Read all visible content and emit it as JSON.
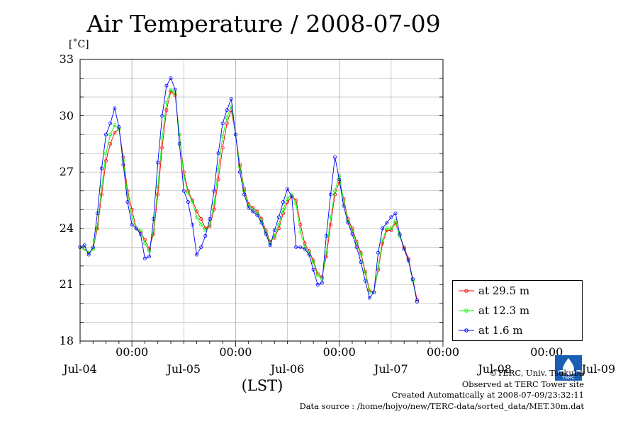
{
  "title": "Air Temperature / 2008-07-09",
  "unit_label": "[˚C]",
  "xlabel": "(LST)",
  "yticks": [
    "33",
    "30",
    "27",
    "24",
    "21",
    "18"
  ],
  "time_ticks": [
    "00:00",
    "00:00",
    "00:00",
    "00:00",
    "00:00"
  ],
  "date_ticks": [
    "Jul-04",
    "Jul-05",
    "Jul-06",
    "Jul-07",
    "Jul-08",
    "Jul-09"
  ],
  "legend": [
    {
      "label": "at 29.5 m",
      "color": "#ff0000"
    },
    {
      "label": "at 12.3 m",
      "color": "#00ff00"
    },
    {
      "label": "at 1.6 m",
      "color": "#0000ff"
    }
  ],
  "credits": {
    "copyright": "©TERC, Univ. Tsukuba",
    "observed": "Observed at TERC Tower site",
    "created": "Created Automatically at 2008-07-09/23:32:11",
    "source": "Data source : /home/hojyo/new/TERC-data/sorted_data/MET.30m.dat",
    "logo_text": "TERC"
  },
  "chart_data": {
    "type": "line",
    "title": "Air Temperature / 2008-07-09",
    "ylabel": "[˚C]",
    "xlabel": "(LST)",
    "ylim": [
      18,
      33
    ],
    "xlim_hours": [
      -12,
      72
    ],
    "grid": true,
    "legend_position": "bottom-right",
    "x_unit": "hours relative to Jul-05 00:00",
    "series": [
      {
        "name": "at 29.5 m",
        "color": "#ff0000",
        "points": [
          [
            -12,
            23.0
          ],
          [
            -11,
            22.9
          ],
          [
            -10,
            22.7
          ],
          [
            -9,
            22.9
          ],
          [
            -8,
            24.0
          ],
          [
            -7,
            25.8
          ],
          [
            -6,
            27.6
          ],
          [
            -5,
            28.5
          ],
          [
            -4,
            29.1
          ],
          [
            -3,
            29.3
          ],
          [
            -2,
            27.8
          ],
          [
            -1,
            26.0
          ],
          [
            0,
            25.0
          ],
          [
            1,
            24.0
          ],
          [
            2,
            23.8
          ],
          [
            3,
            23.4
          ],
          [
            4,
            22.9
          ],
          [
            5,
            23.7
          ],
          [
            6,
            25.8
          ],
          [
            7,
            28.3
          ],
          [
            8,
            30.3
          ],
          [
            9,
            31.3
          ],
          [
            10,
            31.1
          ],
          [
            11,
            29.0
          ],
          [
            12,
            27.0
          ],
          [
            13,
            26.0
          ],
          [
            14,
            25.5
          ],
          [
            15,
            24.9
          ],
          [
            16,
            24.5
          ],
          [
            17,
            24.0
          ],
          [
            18,
            24.1
          ],
          [
            19,
            25.0
          ],
          [
            20,
            26.6
          ],
          [
            21,
            28.3
          ],
          [
            22,
            29.6
          ],
          [
            23,
            30.3
          ],
          [
            24,
            29.0
          ],
          [
            25,
            27.4
          ],
          [
            26,
            26.1
          ],
          [
            27,
            25.3
          ],
          [
            28,
            25.1
          ],
          [
            29,
            24.9
          ],
          [
            30,
            24.5
          ],
          [
            31,
            23.9
          ],
          [
            32,
            23.3
          ],
          [
            33,
            23.5
          ],
          [
            34,
            24.0
          ],
          [
            35,
            24.8
          ],
          [
            36,
            25.4
          ],
          [
            37,
            25.7
          ],
          [
            38,
            25.5
          ],
          [
            39,
            24.2
          ],
          [
            40,
            23.2
          ],
          [
            41,
            22.8
          ],
          [
            42,
            22.3
          ],
          [
            43,
            21.6
          ],
          [
            44,
            21.4
          ],
          [
            45,
            22.5
          ],
          [
            46,
            24.2
          ],
          [
            47,
            25.8
          ],
          [
            48,
            26.5
          ],
          [
            49,
            25.6
          ],
          [
            50,
            24.5
          ],
          [
            51,
            24.0
          ],
          [
            52,
            23.3
          ],
          [
            53,
            22.7
          ],
          [
            54,
            21.7
          ],
          [
            55,
            20.7
          ],
          [
            56,
            20.6
          ],
          [
            57,
            21.8
          ],
          [
            58,
            23.2
          ],
          [
            59,
            23.9
          ],
          [
            60,
            23.9
          ],
          [
            61,
            24.3
          ],
          [
            62,
            23.6
          ],
          [
            63,
            23.0
          ],
          [
            64,
            22.4
          ],
          [
            65,
            21.3
          ],
          [
            66,
            20.2
          ]
        ]
      },
      {
        "name": "at 12.3 m",
        "color": "#00ff00",
        "points": [
          [
            -12,
            23.0
          ],
          [
            -11,
            22.9
          ],
          [
            -10,
            22.7
          ],
          [
            -9,
            22.9
          ],
          [
            -8,
            24.2
          ],
          [
            -7,
            26.2
          ],
          [
            -6,
            28.0
          ],
          [
            -5,
            29.0
          ],
          [
            -4,
            29.5
          ],
          [
            -3,
            29.3
          ],
          [
            -2,
            27.6
          ],
          [
            -1,
            25.8
          ],
          [
            0,
            24.6
          ],
          [
            1,
            24.0
          ],
          [
            2,
            23.9
          ],
          [
            3,
            23.2
          ],
          [
            4,
            22.8
          ],
          [
            5,
            23.9
          ],
          [
            6,
            26.2
          ],
          [
            7,
            28.8
          ],
          [
            8,
            30.7
          ],
          [
            9,
            31.4
          ],
          [
            10,
            31.2
          ],
          [
            11,
            29.0
          ],
          [
            12,
            26.8
          ],
          [
            13,
            25.9
          ],
          [
            14,
            25.4
          ],
          [
            15,
            24.6
          ],
          [
            16,
            24.2
          ],
          [
            17,
            23.9
          ],
          [
            18,
            24.2
          ],
          [
            19,
            25.3
          ],
          [
            20,
            27.1
          ],
          [
            21,
            28.9
          ],
          [
            22,
            29.9
          ],
          [
            23,
            30.5
          ],
          [
            24,
            29.0
          ],
          [
            25,
            27.3
          ],
          [
            26,
            26.0
          ],
          [
            27,
            25.2
          ],
          [
            28,
            25.0
          ],
          [
            29,
            24.8
          ],
          [
            30,
            24.4
          ],
          [
            31,
            23.8
          ],
          [
            32,
            23.2
          ],
          [
            33,
            23.6
          ],
          [
            34,
            24.2
          ],
          [
            35,
            25.0
          ],
          [
            36,
            25.6
          ],
          [
            37,
            25.8
          ],
          [
            38,
            25.3
          ],
          [
            39,
            23.8
          ],
          [
            40,
            23.0
          ],
          [
            41,
            22.7
          ],
          [
            42,
            22.2
          ],
          [
            43,
            21.5
          ],
          [
            44,
            21.3
          ],
          [
            45,
            22.7
          ],
          [
            46,
            24.6
          ],
          [
            47,
            26.0
          ],
          [
            48,
            26.8
          ],
          [
            49,
            25.5
          ],
          [
            50,
            24.4
          ],
          [
            51,
            23.9
          ],
          [
            52,
            23.2
          ],
          [
            53,
            22.6
          ],
          [
            54,
            21.6
          ],
          [
            55,
            20.6
          ],
          [
            56,
            20.6
          ],
          [
            57,
            21.9
          ],
          [
            58,
            23.4
          ],
          [
            59,
            24.0
          ],
          [
            60,
            24.0
          ],
          [
            61,
            24.4
          ],
          [
            62,
            23.6
          ],
          [
            63,
            22.9
          ],
          [
            64,
            22.3
          ],
          [
            65,
            21.2
          ],
          [
            66,
            20.1
          ]
        ]
      },
      {
        "name": "at 1.6 m",
        "color": "#0000ff",
        "points": [
          [
            -12,
            23.0
          ],
          [
            -11,
            23.1
          ],
          [
            -10,
            22.6
          ],
          [
            -9,
            23.0
          ],
          [
            -8,
            24.8
          ],
          [
            -7,
            27.2
          ],
          [
            -6,
            29.0
          ],
          [
            -5,
            29.6
          ],
          [
            -4,
            30.4
          ],
          [
            -3,
            29.4
          ],
          [
            -2,
            27.4
          ],
          [
            -1,
            25.4
          ],
          [
            0,
            24.2
          ],
          [
            1,
            24.0
          ],
          [
            2,
            23.7
          ],
          [
            3,
            22.4
          ],
          [
            4,
            22.5
          ],
          [
            5,
            24.5
          ],
          [
            6,
            27.5
          ],
          [
            7,
            30.0
          ],
          [
            8,
            31.6
          ],
          [
            9,
            32.0
          ],
          [
            10,
            31.4
          ],
          [
            11,
            28.5
          ],
          [
            12,
            26.0
          ],
          [
            13,
            25.4
          ],
          [
            14,
            24.2
          ],
          [
            15,
            22.6
          ],
          [
            16,
            23.0
          ],
          [
            17,
            23.6
          ],
          [
            18,
            24.5
          ],
          [
            19,
            26.0
          ],
          [
            20,
            28.0
          ],
          [
            21,
            29.6
          ],
          [
            22,
            30.3
          ],
          [
            23,
            30.9
          ],
          [
            24,
            29.0
          ],
          [
            25,
            27.0
          ],
          [
            26,
            25.8
          ],
          [
            27,
            25.1
          ],
          [
            28,
            24.9
          ],
          [
            29,
            24.7
          ],
          [
            30,
            24.3
          ],
          [
            31,
            23.7
          ],
          [
            32,
            23.1
          ],
          [
            33,
            23.9
          ],
          [
            34,
            24.6
          ],
          [
            35,
            25.4
          ],
          [
            36,
            26.1
          ],
          [
            37,
            25.7
          ],
          [
            38,
            23.0
          ],
          [
            39,
            23.0
          ],
          [
            40,
            22.9
          ],
          [
            41,
            22.6
          ],
          [
            42,
            21.8
          ],
          [
            43,
            21.0
          ],
          [
            44,
            21.1
          ],
          [
            45,
            23.6
          ],
          [
            46,
            25.8
          ],
          [
            47,
            27.8
          ],
          [
            48,
            26.6
          ],
          [
            49,
            25.2
          ],
          [
            50,
            24.3
          ],
          [
            51,
            23.7
          ],
          [
            52,
            23.0
          ],
          [
            53,
            22.2
          ],
          [
            54,
            21.2
          ],
          [
            55,
            20.3
          ],
          [
            56,
            20.6
          ],
          [
            57,
            22.7
          ],
          [
            58,
            24.0
          ],
          [
            59,
            24.3
          ],
          [
            60,
            24.6
          ],
          [
            61,
            24.8
          ],
          [
            62,
            23.7
          ],
          [
            63,
            22.9
          ],
          [
            64,
            22.3
          ],
          [
            65,
            21.3
          ],
          [
            66,
            20.1
          ]
        ]
      }
    ]
  }
}
